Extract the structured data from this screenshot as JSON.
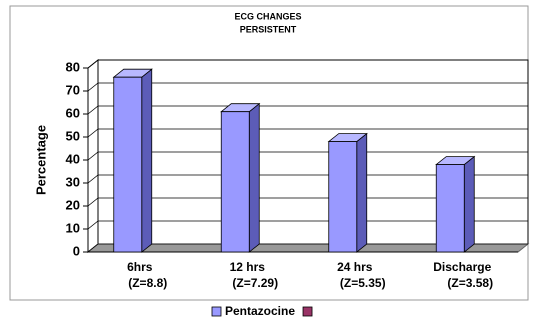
{
  "chart_data": {
    "type": "bar3d",
    "title": [
      "ECG CHANGES",
      "PERSISTENT"
    ],
    "ylabel": "Percentage",
    "categories": [
      [
        "6hrs",
        "(Z=8.8)"
      ],
      [
        "12 hrs",
        "(Z=7.29)"
      ],
      [
        "24 hrs",
        "(Z=5.35)"
      ],
      [
        "Discharge",
        "(Z=3.58)"
      ]
    ],
    "series": [
      {
        "name": "Pentazocine",
        "color": "#9999ff",
        "values": [
          76,
          61,
          48,
          38
        ]
      },
      {
        "color": "#993366",
        "values": [
          null,
          null,
          null,
          null
        ]
      }
    ],
    "ylim": [
      0,
      80
    ],
    "yticks": [
      0,
      10,
      20,
      30,
      40,
      50,
      60,
      70,
      80
    ],
    "grid": true,
    "legend": "bottom"
  }
}
